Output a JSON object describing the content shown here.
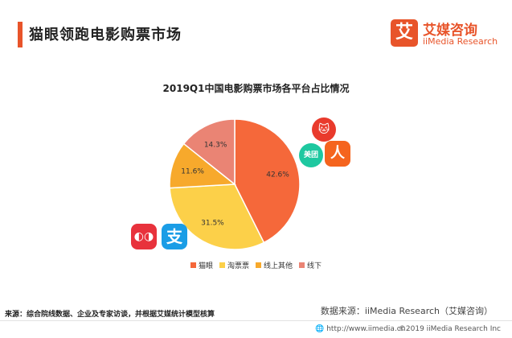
{
  "header": {
    "title": "猫眼领跑电影购票市场",
    "corner_badge": "ǒ​"
  },
  "logo": {
    "mark": "艾",
    "name_cn": "艾媒咨询",
    "name_en": "iiMedia Research"
  },
  "colors": {
    "accent": "#e8542a"
  },
  "icons": {
    "maoyan": "🐱",
    "meituan": "美团",
    "people": "人",
    "taopiao": "◐◑",
    "alipay": "支"
  },
  "chart_data": {
    "type": "pie",
    "title": "2019Q1中国电影购票市场各平台占比情况",
    "start_angle_deg": 0,
    "direction": "clockwise",
    "slices": [
      {
        "label": "猫眼",
        "value": 42.6,
        "display": "42.6%",
        "color": "#f5683a"
      },
      {
        "label": "淘票票",
        "value": 31.5,
        "display": "31.5%",
        "color": "#fcd049"
      },
      {
        "label": "线上其他",
        "value": 11.6,
        "display": "11.6%",
        "color": "#f7a92c"
      },
      {
        "label": "线下",
        "value": 14.3,
        "display": "14.3%",
        "color": "#ea8474"
      }
    ],
    "legend_position": "bottom"
  },
  "source": {
    "left": "来源：综合院线数据、企业及专家访谈，并根据艾媒统计模型核算",
    "right": "数据来源：iiMedia Research（艾媒咨询）"
  },
  "footer": {
    "url": "http://www.iimedia.cn",
    "copyright": "©2019  iiMedia Research  Inc"
  }
}
